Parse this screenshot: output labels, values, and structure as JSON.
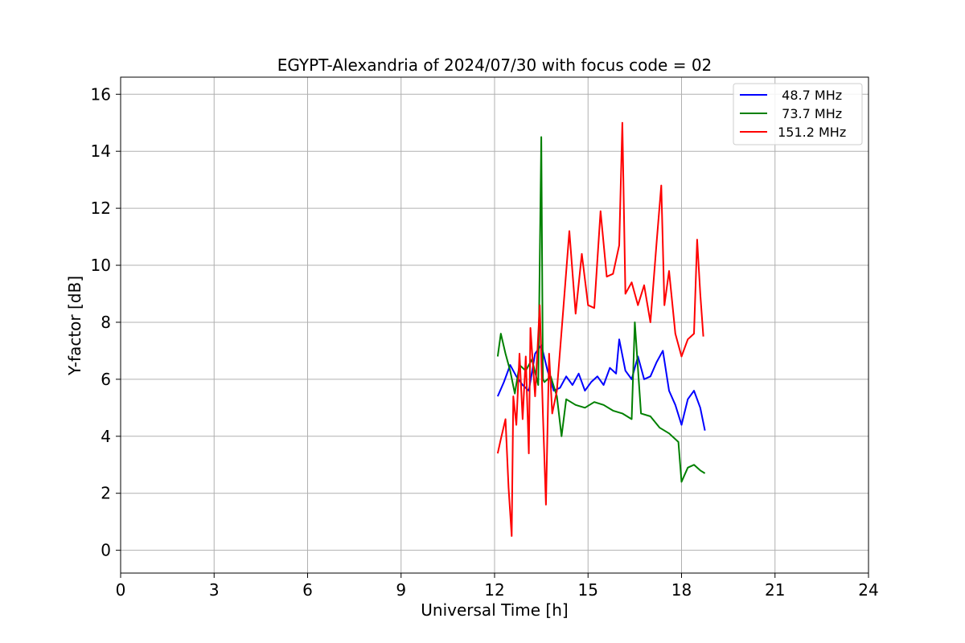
{
  "chart_data": {
    "type": "line",
    "title": "EGYPT-Alexandria of 2024/07/30 with focus code = 02",
    "xlabel": "Universal Time [h]",
    "ylabel": "Y-factor [dB]",
    "xlim": [
      0,
      24
    ],
    "ylim": [
      -0.8,
      16.6
    ],
    "x_ticks": [
      0,
      3,
      6,
      9,
      12,
      15,
      18,
      21,
      24
    ],
    "y_ticks": [
      0,
      2,
      4,
      6,
      8,
      10,
      12,
      14,
      16
    ],
    "grid": true,
    "legend_position": "top-right",
    "series": [
      {
        "name": "  48.7 MHz",
        "color": "#0000ff",
        "x": [
          12.1,
          12.3,
          12.5,
          12.7,
          12.9,
          13.1,
          13.3,
          13.5,
          13.7,
          13.9,
          14.1,
          14.3,
          14.5,
          14.7,
          14.9,
          15.1,
          15.3,
          15.5,
          15.7,
          15.9,
          16.0,
          16.2,
          16.4,
          16.6,
          16.8,
          17.0,
          17.2,
          17.4,
          17.6,
          17.8,
          18.0,
          18.2,
          18.4,
          18.6,
          18.75
        ],
        "y": [
          5.4,
          5.9,
          6.5,
          6.1,
          5.8,
          5.6,
          6.9,
          7.2,
          6.3,
          5.6,
          5.7,
          6.1,
          5.8,
          6.2,
          5.6,
          5.9,
          6.1,
          5.8,
          6.4,
          6.2,
          7.4,
          6.3,
          6.0,
          6.8,
          6.0,
          6.1,
          6.6,
          7.0,
          5.6,
          5.1,
          4.4,
          5.3,
          5.6,
          5.0,
          4.2
        ]
      },
      {
        "name": "  73.7 MHz",
        "color": "#008000",
        "x": [
          12.1,
          12.2,
          12.35,
          12.5,
          12.65,
          12.8,
          13.0,
          13.2,
          13.4,
          13.5,
          13.55,
          13.6,
          13.8,
          14.0,
          14.15,
          14.3,
          14.6,
          14.9,
          15.2,
          15.5,
          15.8,
          16.1,
          16.4,
          16.5,
          16.7,
          17.0,
          17.3,
          17.6,
          17.9,
          18.0,
          18.2,
          18.4,
          18.6,
          18.75
        ],
        "y": [
          6.8,
          7.6,
          6.9,
          6.3,
          5.5,
          6.5,
          6.3,
          6.7,
          5.8,
          14.5,
          6.0,
          5.9,
          6.1,
          5.4,
          4.0,
          5.3,
          5.1,
          5.0,
          5.2,
          5.1,
          4.9,
          4.8,
          4.6,
          8.0,
          4.8,
          4.7,
          4.3,
          4.1,
          3.8,
          2.4,
          2.9,
          3.0,
          2.8,
          2.7
        ]
      },
      {
        "name": " 151.2 MHz",
        "color": "#ff0000",
        "x": [
          12.1,
          12.2,
          12.35,
          12.45,
          12.55,
          12.6,
          12.7,
          12.8,
          12.9,
          13.0,
          13.1,
          13.15,
          13.3,
          13.45,
          13.55,
          13.65,
          13.75,
          13.85,
          14.0,
          14.2,
          14.4,
          14.6,
          14.8,
          15.0,
          15.2,
          15.4,
          15.6,
          15.8,
          16.0,
          16.1,
          16.2,
          16.4,
          16.6,
          16.8,
          17.0,
          17.2,
          17.35,
          17.45,
          17.6,
          17.8,
          18.0,
          18.2,
          18.4,
          18.5,
          18.6,
          18.7
        ],
        "y": [
          3.4,
          3.9,
          4.6,
          2.2,
          0.5,
          5.4,
          4.4,
          6.9,
          4.6,
          6.8,
          3.4,
          7.8,
          5.4,
          8.6,
          4.8,
          1.6,
          6.9,
          4.8,
          5.6,
          8.4,
          11.2,
          8.3,
          10.4,
          8.6,
          8.5,
          11.9,
          9.6,
          9.7,
          10.7,
          15.0,
          9.0,
          9.4,
          8.6,
          9.3,
          8.0,
          10.8,
          12.8,
          8.6,
          9.8,
          7.6,
          6.8,
          7.4,
          7.6,
          10.9,
          9.0,
          7.5
        ]
      }
    ]
  }
}
